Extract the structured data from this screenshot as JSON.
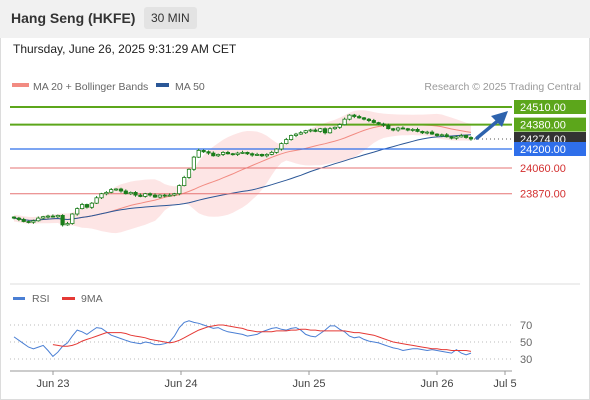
{
  "header": {
    "title": "Hang Seng (HKFE)",
    "timeframe": "30 MIN"
  },
  "datetime": "Thursday, June 26, 2025 9:31:29 AM CET",
  "legend": {
    "ma20": {
      "label": "MA 20 + Bollinger Bands",
      "color": "#f28b82"
    },
    "ma50": {
      "label": "MA 50",
      "color": "#2b5797"
    }
  },
  "credit": "Research © 2025 Trading Central",
  "rsi_legend": {
    "rsi": {
      "label": "RSI",
      "color": "#4a7fd4"
    },
    "ma": {
      "label": "9MA",
      "color": "#e53935"
    }
  },
  "colors": {
    "candle": "#1a7d1a",
    "resistance": "#5ca61b",
    "support": "#2f6fea",
    "lower_line": "#e57373",
    "last_price": "#333333",
    "arrow": "#2e63ad"
  },
  "chart_data": [
    {
      "type": "candlestick",
      "title": "Hang Seng (HKFE)",
      "x_ticks": [
        "Jun 23",
        "Jun 24",
        "Jun 25",
        "Jun 26",
        "Jul 5"
      ],
      "ylim": [
        23620,
        24540
      ],
      "levels": [
        {
          "value": 24510,
          "label": "24510.00",
          "role": "resistance"
        },
        {
          "value": 24380,
          "label": "24380.00",
          "role": "resistance"
        },
        {
          "value": 24274,
          "label": "24274.00",
          "role": "last"
        },
        {
          "value": 24200,
          "label": "24200.00",
          "role": "support"
        },
        {
          "value": 24060,
          "label": "24060.00",
          "role": "target"
        },
        {
          "value": 23870,
          "label": "23870.00",
          "role": "target"
        }
      ],
      "close_series": [
        23690,
        23680,
        23665,
        23660,
        23670,
        23690,
        23700,
        23705,
        23700,
        23710,
        23640,
        23650,
        23720,
        23760,
        23790,
        23770,
        23800,
        23840,
        23870,
        23880,
        23900,
        23905,
        23890,
        23870,
        23880,
        23860,
        23850,
        23870,
        23860,
        23845,
        23860,
        23855,
        23860,
        23870,
        23930,
        23990,
        24050,
        24140,
        24190,
        24180,
        24170,
        24150,
        24160,
        24175,
        24165,
        24160,
        24170,
        24175,
        24165,
        24155,
        24160,
        24150,
        24160,
        24175,
        24200,
        24240,
        24270,
        24300,
        24310,
        24320,
        24335,
        24340,
        24330,
        24350,
        24320,
        24350,
        24360,
        24380,
        24420,
        24450,
        24440,
        24430,
        24420,
        24410,
        24395,
        24385,
        24375,
        24350,
        24340,
        24355,
        24350,
        24340,
        24345,
        24330,
        24320,
        24325,
        24310,
        24300,
        24305,
        24290,
        24280,
        24290,
        24300,
        24285,
        24274
      ],
      "annotation": "arrow pointing up toward 24510.00"
    },
    {
      "type": "line",
      "title": "RSI",
      "series": [
        {
          "name": "RSI",
          "values": [
            56,
            52,
            48,
            44,
            42,
            44,
            46,
            40,
            33,
            38,
            45,
            49,
            57,
            64,
            62,
            59,
            63,
            67,
            66,
            62,
            58,
            56,
            54,
            52,
            50,
            49,
            48,
            50,
            49,
            47,
            47,
            48,
            50,
            57,
            67,
            73,
            75,
            73,
            72,
            70,
            68,
            66,
            67,
            64,
            62,
            61,
            60,
            59,
            57,
            58,
            59,
            62,
            64,
            66,
            67,
            65,
            64,
            66,
            67,
            64,
            59,
            57,
            56,
            60,
            64,
            69,
            69,
            65,
            62,
            57,
            55,
            56,
            53,
            51,
            50,
            49,
            47,
            45,
            43,
            42,
            40,
            41,
            42,
            42,
            41,
            40,
            41,
            40,
            39,
            38,
            37,
            41,
            37,
            35,
            37
          ]
        },
        {
          "name": "9MA",
          "values": [
            null,
            null,
            null,
            null,
            null,
            null,
            null,
            null,
            47,
            46,
            45,
            45,
            46,
            48,
            51,
            53,
            55,
            57,
            59,
            61,
            61,
            61,
            61,
            60,
            58,
            57,
            56,
            55,
            53,
            52,
            51,
            50,
            49,
            50,
            52,
            55,
            58,
            61,
            64,
            66,
            68,
            69,
            70,
            70,
            69,
            68,
            67,
            66,
            64,
            63,
            62,
            62,
            62,
            62,
            63,
            63,
            63,
            64,
            64,
            65,
            65,
            64,
            64,
            63,
            63,
            63,
            63,
            63,
            63,
            62,
            61,
            61,
            60,
            59,
            58,
            56,
            54,
            52,
            50,
            49,
            48,
            47,
            46,
            45,
            44,
            43,
            42,
            42,
            41,
            41,
            40,
            40,
            40,
            40,
            39
          ]
        }
      ],
      "y_ticks": [
        70,
        50,
        30
      ],
      "ylim": [
        16,
        84
      ]
    }
  ]
}
